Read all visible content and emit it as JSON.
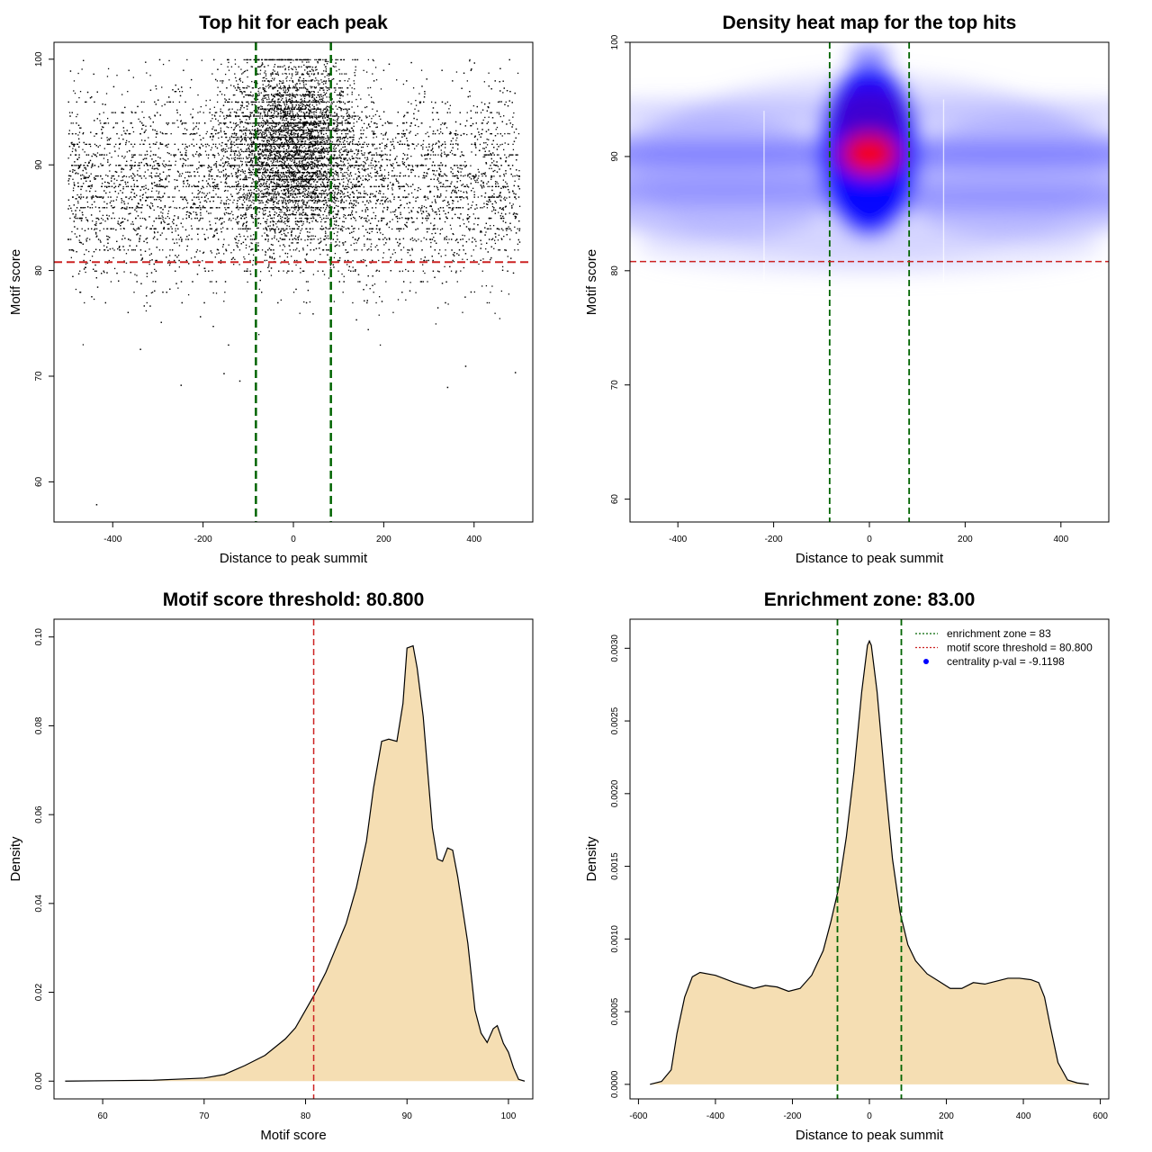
{
  "chart_data": [
    {
      "type": "scatter",
      "title": "Top hit for each peak",
      "xlabel": "Distance to peak summit",
      "ylabel": "Motif score",
      "xlim": [
        -530,
        530
      ],
      "ylim": [
        56.2,
        101.6
      ],
      "xticks": [
        "-400",
        "-200",
        "0",
        "200",
        "400"
      ],
      "yticks": [
        "60",
        "70",
        "80",
        "90",
        "100"
      ],
      "point_color": "#000000",
      "background_bands": {
        "x_range": [
          -500,
          500
        ],
        "score_levels": [
          88,
          89,
          90,
          91,
          93,
          95
        ]
      },
      "central_cluster": {
        "x_center": 0,
        "x_sd": 70,
        "y_center": 92,
        "y_sd": 4
      },
      "outliers": [
        {
          "x": -437,
          "y": 57.9
        },
        {
          "x": -250,
          "y": 69.2
        },
        {
          "x": -120,
          "y": 69.6
        },
        {
          "x": 340,
          "y": 69.0
        },
        {
          "x": 380,
          "y": 71.0
        },
        {
          "x": -155,
          "y": 70.3
        },
        {
          "x": 490,
          "y": 70.4
        },
        {
          "x": -340,
          "y": 72.6
        }
      ],
      "vlines": [
        -83,
        83
      ],
      "vline_color": "#006400",
      "hline": 80.8,
      "hline_color": "#cc2222"
    },
    {
      "type": "heatmap",
      "title": "Density heat map for the top hits",
      "xlabel": "Distance to peak summit",
      "ylabel": "Motif score",
      "xlim": [
        -500,
        500
      ],
      "ylim": [
        58,
        100
      ],
      "xticks": [
        "-400",
        "-200",
        "0",
        "200",
        "400"
      ],
      "yticks": [
        "60",
        "70",
        "80",
        "90",
        "100"
      ],
      "colors": {
        "low": "#ffffff",
        "mid": "#0000ff",
        "high": "#ff0000"
      },
      "hot_spot": {
        "x": 0,
        "y": 90.2
      },
      "vlines": [
        -83,
        83
      ],
      "vline_color": "#006400",
      "hline": 80.8,
      "hline_color": "#cc2222"
    },
    {
      "type": "area",
      "title": "Motif score threshold: 80.800",
      "xlabel": "Motif score",
      "ylabel": "Density",
      "xlim": [
        55.2,
        102.4
      ],
      "ylim": [
        -0.004,
        0.104
      ],
      "xticks": [
        "60",
        "70",
        "80",
        "90",
        "100"
      ],
      "yticks": [
        "0.00",
        "0.02",
        "0.04",
        "0.06",
        "0.08",
        "0.10"
      ],
      "fill": "#f5deb3",
      "x": [
        56.3,
        65,
        68,
        70,
        72,
        74,
        76,
        78,
        79,
        80,
        81,
        82,
        83,
        84,
        85,
        86,
        86.7,
        87.5,
        88.2,
        89,
        89.6,
        90,
        90.6,
        91,
        91.6,
        92.1,
        92.5,
        93,
        93.5,
        94,
        94.5,
        95,
        96,
        96.7,
        97.3,
        97.9,
        98.5,
        98.9,
        99.5,
        100,
        100.5,
        101,
        101.6
      ],
      "values": [
        0,
        0.0002,
        0.0005,
        0.0007,
        0.0015,
        0.0035,
        0.0058,
        0.0095,
        0.012,
        0.016,
        0.02,
        0.0245,
        0.03,
        0.0355,
        0.0435,
        0.054,
        0.066,
        0.0765,
        0.077,
        0.0765,
        0.085,
        0.0975,
        0.098,
        0.093,
        0.082,
        0.068,
        0.057,
        0.05,
        0.0495,
        0.0525,
        0.052,
        0.046,
        0.031,
        0.016,
        0.0108,
        0.0087,
        0.0118,
        0.0125,
        0.0085,
        0.0065,
        0.003,
        0.0004,
        0
      ],
      "vline": 80.8,
      "vline_color": "#cc2222"
    },
    {
      "type": "area",
      "title": "Enrichment zone: 83.00",
      "xlabel": "Distance to peak summit",
      "ylabel": "Density",
      "xlim": [
        -622,
        622
      ],
      "ylim": [
        -0.0001,
        0.0032
      ],
      "xticks": [
        "-600",
        "-400",
        "-200",
        "0",
        "200",
        "400",
        "600"
      ],
      "yticks": [
        "0.0000",
        "0.0005",
        "0.0010",
        "0.0015",
        "0.0020",
        "0.0025",
        "0.0030"
      ],
      "fill": "#f5deb3",
      "x": [
        -570,
        -540,
        -515,
        -500,
        -480,
        -460,
        -440,
        -400,
        -350,
        -300,
        -270,
        -240,
        -210,
        -180,
        -150,
        -120,
        -100,
        -80,
        -60,
        -40,
        -20,
        -5,
        0,
        5,
        20,
        40,
        60,
        80,
        100,
        120,
        150,
        180,
        210,
        240,
        270,
        300,
        330,
        360,
        390,
        420,
        440,
        455,
        470,
        490,
        515,
        540,
        570
      ],
      "values": [
        0,
        2e-05,
        0.0001,
        0.00035,
        0.0006,
        0.00074,
        0.00077,
        0.00075,
        0.0007,
        0.00066,
        0.00068,
        0.00067,
        0.00064,
        0.00066,
        0.00075,
        0.00092,
        0.00112,
        0.00135,
        0.0017,
        0.00215,
        0.0027,
        0.00302,
        0.00305,
        0.00302,
        0.0027,
        0.0021,
        0.00155,
        0.00118,
        0.00096,
        0.00085,
        0.00076,
        0.00071,
        0.00066,
        0.00066,
        0.0007,
        0.00069,
        0.00071,
        0.00073,
        0.00073,
        0.00072,
        0.0007,
        0.0006,
        0.0004,
        0.00015,
        3e-05,
        1e-05,
        0
      ],
      "vlines": [
        -83,
        83
      ],
      "vline_color": "#006400",
      "legend": {
        "placement": "top-right",
        "items": [
          {
            "label": "enrichment zone = 83",
            "color": "#006400",
            "kind": "line"
          },
          {
            "label": "motif score threshold = 80.800",
            "color": "#cc2222",
            "kind": "line"
          },
          {
            "label": "centrality p-val = -9.1198",
            "color": "#0000ff",
            "kind": "point"
          }
        ]
      }
    }
  ]
}
